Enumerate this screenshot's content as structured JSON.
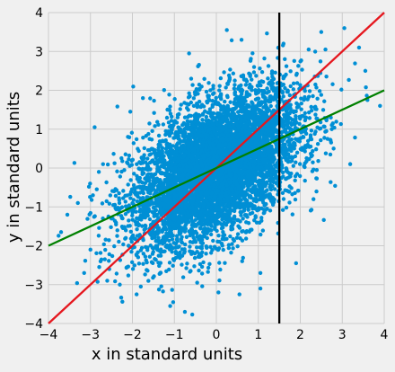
{
  "chart_data": {
    "type": "scatter",
    "title": "",
    "xlabel": "x in standard units",
    "ylabel": "y in standard units",
    "xlim": [
      -4,
      4
    ],
    "ylim": [
      -4,
      4
    ],
    "xticks": [
      -4,
      -3,
      -2,
      -1,
      0,
      1,
      2,
      3,
      4
    ],
    "yticks": [
      -4,
      -3,
      -2,
      -1,
      0,
      1,
      2,
      3,
      4
    ],
    "xtick_labels": [
      "−4",
      "−3",
      "−2",
      "−1",
      "0",
      "1",
      "2",
      "3",
      "4"
    ],
    "ytick_labels": [
      "−4",
      "−3",
      "−2",
      "−1",
      "0",
      "1",
      "2",
      "3",
      "4"
    ],
    "grid": true,
    "background_color": "#f0f0f0",
    "grid_color": "#cbcbcb",
    "point_color": "#008fd5",
    "scatter": {
      "n_points": 6000,
      "correlation": 0.5,
      "sample_points": [
        [
          3.05,
          3.6
        ],
        [
          2.5,
          3.5
        ],
        [
          2.6,
          3.05
        ],
        [
          2.2,
          3.05
        ],
        [
          1.6,
          3.2
        ],
        [
          3.4,
          3.1
        ],
        [
          3.55,
          2.5
        ],
        [
          3.6,
          1.75
        ],
        [
          3.9,
          1.6
        ],
        [
          2.75,
          1.0
        ],
        [
          2.65,
          0.75
        ],
        [
          -2.9,
          1.05
        ],
        [
          -2.8,
          -0.1
        ],
        [
          -2.7,
          0.1
        ],
        [
          -3.3,
          -0.9
        ],
        [
          -3.55,
          -1.2
        ],
        [
          -3.7,
          -1.65
        ],
        [
          -4.2,
          -1.45
        ],
        [
          -2.5,
          -1.3
        ],
        [
          -3.15,
          -2.7
        ],
        [
          -3.0,
          -2.1
        ],
        [
          -2.6,
          -2.9
        ],
        [
          -1.8,
          -3.05
        ],
        [
          -1.9,
          -3.25
        ],
        [
          -2.3,
          -3.0
        ],
        [
          -1.1,
          -3.55
        ],
        [
          -0.75,
          -3.7
        ],
        [
          0.05,
          -3.2
        ],
        [
          0.55,
          -3.25
        ],
        [
          1.05,
          -3.1
        ],
        [
          1.05,
          -2.7
        ],
        [
          1.9,
          -2.45
        ],
        [
          0.6,
          3.3
        ],
        [
          0.25,
          3.55
        ],
        [
          -0.65,
          2.95
        ],
        [
          -0.6,
          2.3
        ],
        [
          -2.05,
          1.45
        ],
        [
          -1.75,
          1.8
        ],
        [
          2.0,
          2.05
        ],
        [
          2.3,
          1.85
        ]
      ]
    },
    "lines": [
      {
        "color": "#e5171e",
        "slope": 1.0,
        "intercept": 0.0
      },
      {
        "color": "#008000",
        "slope": 0.5,
        "intercept": 0.0
      }
    ],
    "vline": {
      "x": 1.5,
      "color": "#000000"
    }
  }
}
